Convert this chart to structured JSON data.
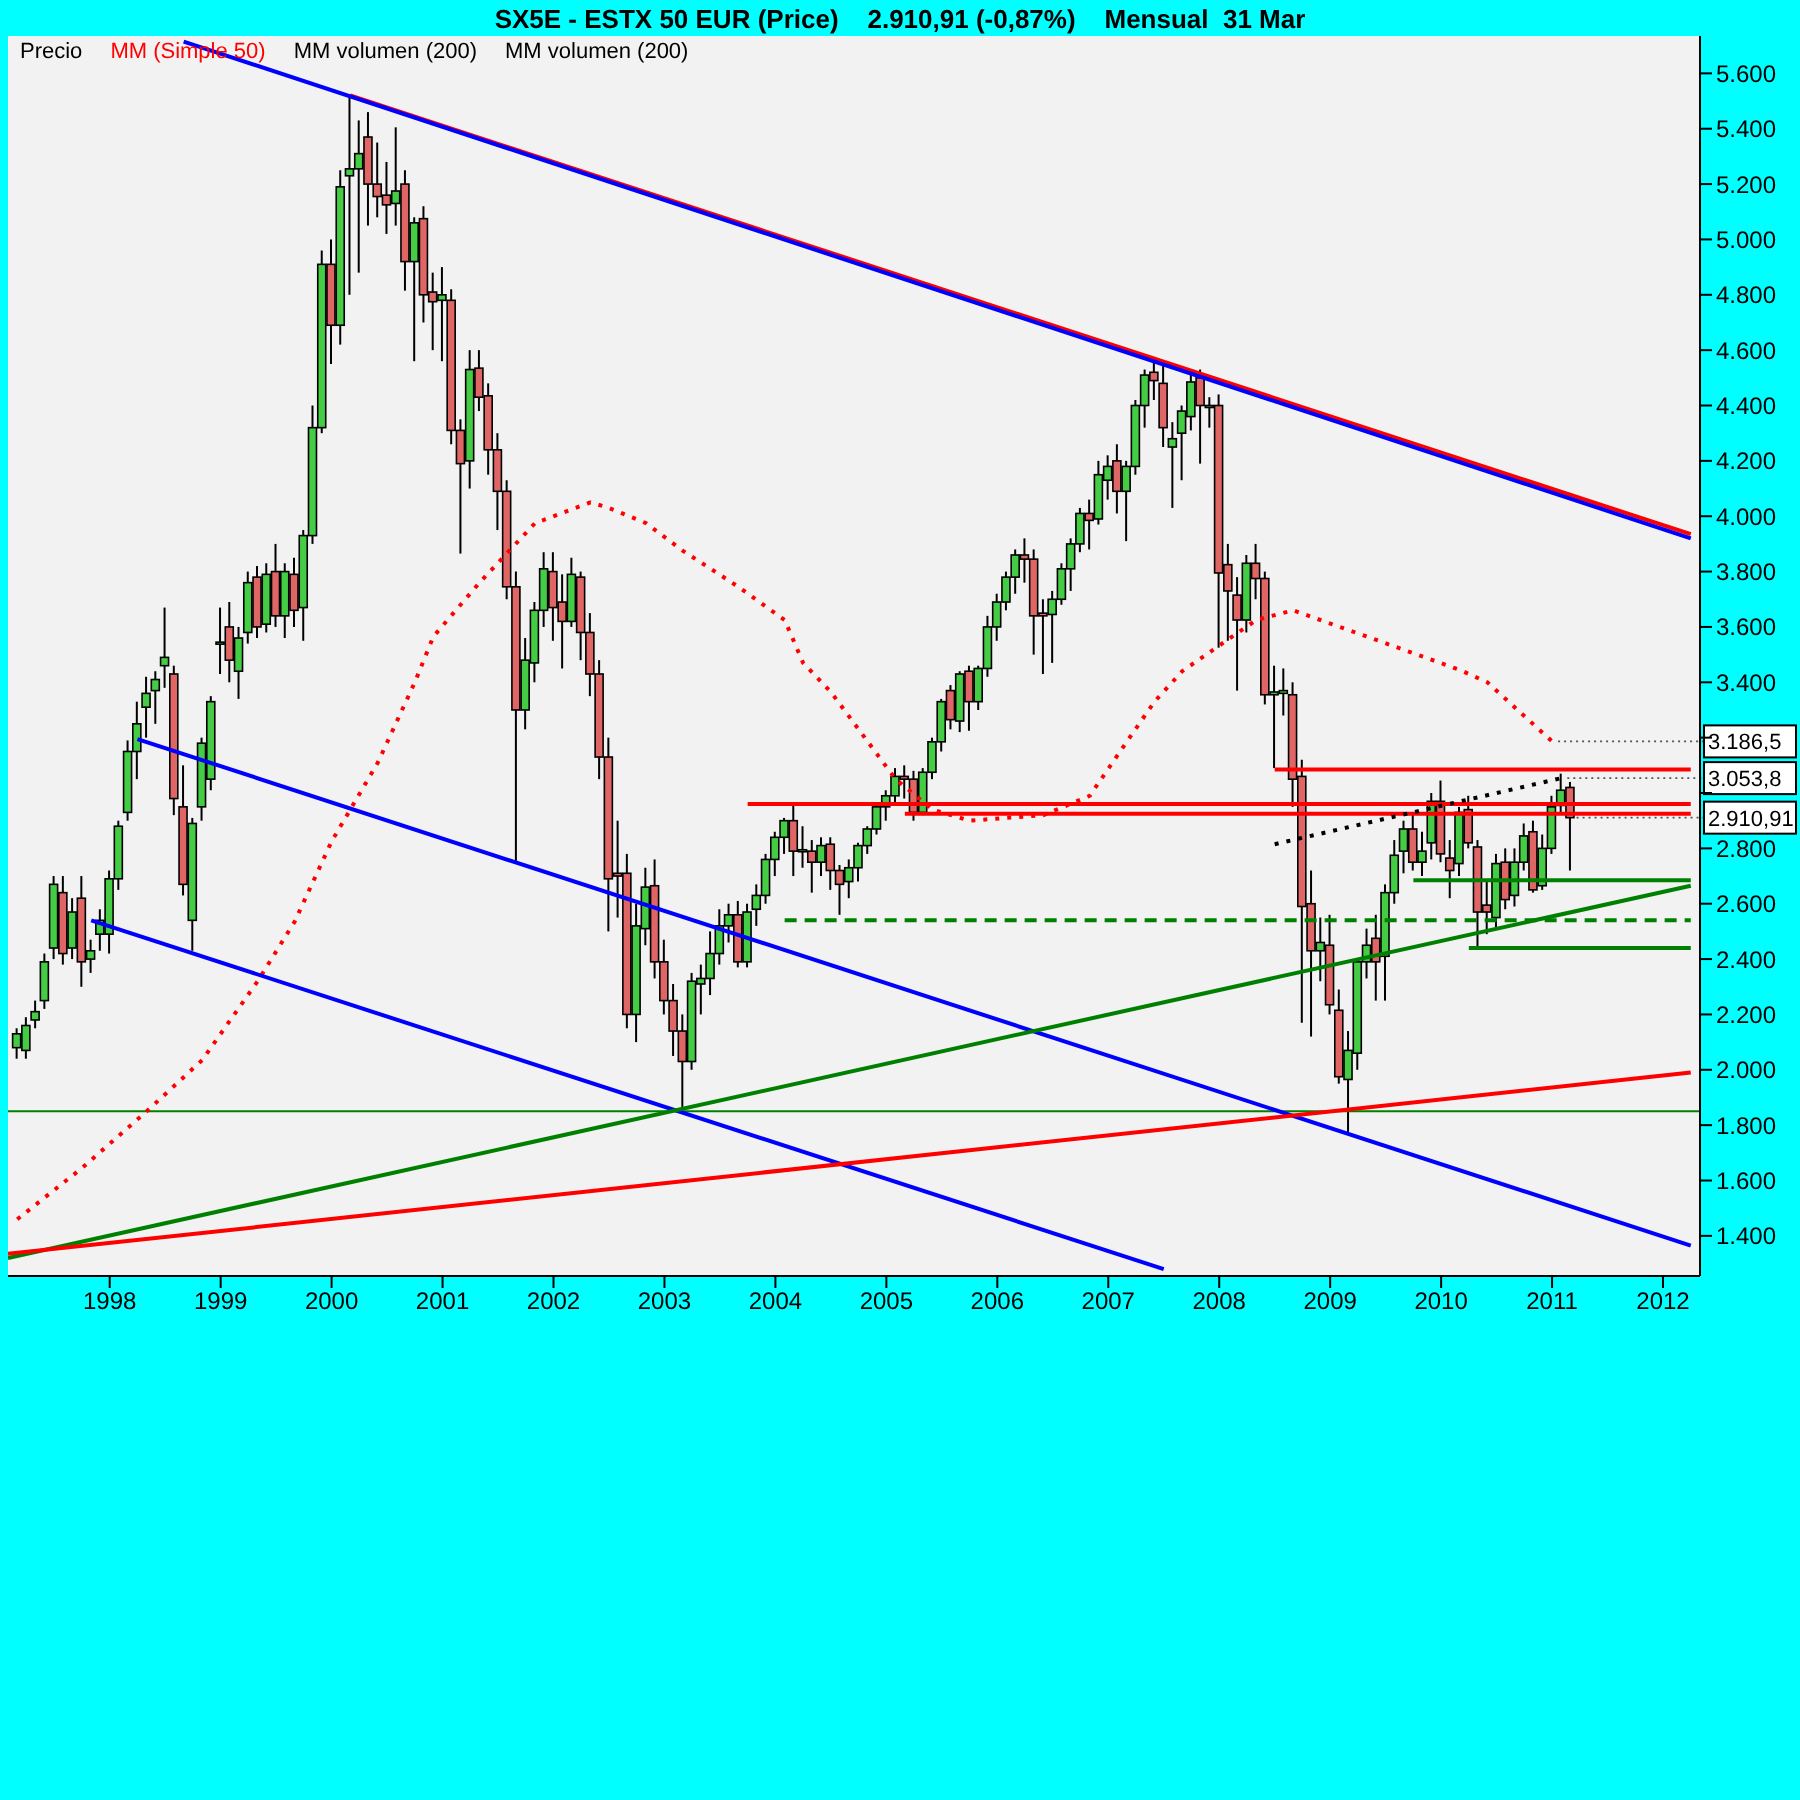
{
  "chart_data": {
    "type": "candlestick",
    "title": "SX5E - ESTX 50 EUR (Price)    2.910,91 (-0,87%)    Mensual  31 Mar",
    "legend": "top left",
    "grid": false,
    "xlim": [
      "1997-02",
      "2012-05"
    ],
    "xticks": [
      {
        "value": "1998-01",
        "label": "1998"
      },
      {
        "value": "1999-01",
        "label": "1999"
      },
      {
        "value": "2000-01",
        "label": "2000"
      },
      {
        "value": "2001-01",
        "label": "2001"
      },
      {
        "value": "2002-01",
        "label": "2002"
      },
      {
        "value": "2003-01",
        "label": "2003"
      },
      {
        "value": "2004-01",
        "label": "2004"
      },
      {
        "value": "2005-01",
        "label": "2005"
      },
      {
        "value": "2006-01",
        "label": "2006"
      },
      {
        "value": "2007-01",
        "label": "2007"
      },
      {
        "value": "2008-01",
        "label": "2008"
      },
      {
        "value": "2009-01",
        "label": "2009"
      },
      {
        "value": "2010-01",
        "label": "2010"
      },
      {
        "value": "2011-01",
        "label": "2011"
      },
      {
        "value": "2012-01",
        "label": "2012"
      }
    ],
    "ylim": [
      1255,
      5735
    ],
    "yticks": [
      {
        "value": 1400,
        "label": "1.400"
      },
      {
        "value": 1600,
        "label": "1.600"
      },
      {
        "value": 1800,
        "label": "1.800"
      },
      {
        "value": 2000,
        "label": "2.000"
      },
      {
        "value": 2200,
        "label": "2.200"
      },
      {
        "value": 2400,
        "label": "2.400"
      },
      {
        "value": 2600,
        "label": "2.600"
      },
      {
        "value": 2800,
        "label": "2.800"
      },
      {
        "value": 3000,
        "label": null
      },
      {
        "value": 3200,
        "label": null
      },
      {
        "value": 3400,
        "label": "3.400"
      },
      {
        "value": 3600,
        "label": "3.600"
      },
      {
        "value": 3800,
        "label": "3.800"
      },
      {
        "value": 4000,
        "label": "4.000"
      },
      {
        "value": 4200,
        "label": "4.200"
      },
      {
        "value": 4400,
        "label": "4.400"
      },
      {
        "value": 4600,
        "label": "4.600"
      },
      {
        "value": 4800,
        "label": "4.800"
      },
      {
        "value": 5000,
        "label": "5.000"
      },
      {
        "value": 5200,
        "label": "5.200"
      },
      {
        "value": 5400,
        "label": "5.400"
      },
      {
        "value": 5600,
        "label": "5.600"
      }
    ],
    "ref_lines": [
      {
        "axis": "y",
        "value": 1850,
        "color": "#008000"
      }
    ],
    "annotations": [
      "MM volumen (200)",
      "MM volumen (200)",
      {
        "text": "3.186,5",
        "x": "2011-01",
        "y": 3186.5
      },
      {
        "text": "3.053,8",
        "x": "2011-02",
        "y": 3053.8
      },
      {
        "text": "2.910,91",
        "x": "2011-03",
        "y": 2910.91
      }
    ],
    "series": [
      {
        "type": "line",
        "name": "MM (Simple 50)",
        "color": "#ff0000",
        "line_style": "dotted",
        "x": [
          "1997-03",
          "1997-10",
          "1998-05",
          "1998-11",
          "1999-05",
          "1999-09",
          "2000-01",
          "2000-06",
          "2000-10",
          "2000-12",
          "2001-05",
          "2001-11",
          "2002-05",
          "2002-07",
          "2002-11",
          "2003-03",
          "2003-09",
          "2004-02",
          "2004-04",
          "2004-07",
          "2004-11",
          "2005-02",
          "2005-06",
          "2005-10",
          "2006-06",
          "2006-11",
          "2007-03",
          "2007-06",
          "2007-09",
          "2008-05",
          "2008-09",
          "2009-05",
          "2010-03",
          "2010-06",
          "2011-01"
        ],
        "values": [
          1460,
          1645,
          1850,
          2035,
          2320,
          2535,
          2825,
          3110,
          3400,
          3565,
          3760,
          3975,
          4050,
          4030,
          3975,
          3875,
          3745,
          3625,
          3470,
          3365,
          3185,
          3050,
          2940,
          2900,
          2920,
          2990,
          3185,
          3330,
          3440,
          3625,
          3660,
          3565,
          3445,
          3400,
          3186.5
        ]
      },
      {
        "type": "line",
        "color": "#ff0000",
        "x": [
          "2000-03",
          "2012-04"
        ],
        "values": [
          5520,
          3935
        ]
      },
      {
        "type": "line",
        "color": "#0000ff",
        "x": [
          "1998-09",
          "2012-04"
        ],
        "values": [
          5715,
          3920
        ]
      },
      {
        "type": "line",
        "color": "#0000ff",
        "x": [
          "1998-04",
          "2012-04"
        ],
        "values": [
          3195,
          1365
        ]
      },
      {
        "type": "line",
        "color": "#0000ff",
        "x": [
          "1997-11",
          "2007-07"
        ],
        "values": [
          2540,
          1280
        ]
      },
      {
        "type": "line",
        "color": "#008000",
        "x": [
          "1997-02",
          "2012-04"
        ],
        "values": [
          1320,
          2665
        ]
      },
      {
        "type": "line",
        "color": "#ff0000",
        "x": [
          "1997-02",
          "2012-04"
        ],
        "values": [
          1335,
          1990
        ]
      },
      {
        "type": "line",
        "color": "#ff0000",
        "x": [
          "2003-10",
          "2012-04"
        ],
        "values": [
          2960,
          2960
        ]
      },
      {
        "type": "line",
        "color": "#ff0000",
        "x": [
          "2005-03",
          "2012-04"
        ],
        "values": [
          2925,
          2925
        ]
      },
      {
        "type": "line",
        "color": "#ff0000",
        "x": [
          "2008-07",
          "2012-04"
        ],
        "values": [
          3085,
          3085
        ]
      },
      {
        "type": "line",
        "color": "#008000",
        "line_style": "dashed",
        "x": [
          "2004-02",
          "2012-04"
        ],
        "values": [
          2540,
          2540
        ]
      },
      {
        "type": "line",
        "color": "#008000",
        "x": [
          "2009-10",
          "2012-04"
        ],
        "values": [
          2685,
          2685
        ]
      },
      {
        "type": "line",
        "color": "#008000",
        "x": [
          "2010-04",
          "2012-04"
        ],
        "values": [
          2440,
          2440
        ]
      },
      {
        "type": "line",
        "color": "#000000",
        "line_style": "dotted",
        "x": [
          "2008-07",
          "2011-02"
        ],
        "values": [
          2815,
          3053.8
        ]
      },
      {
        "type": "candlestick",
        "name": "Precio",
        "x": [
          "1997-03",
          "1997-04",
          "1997-05",
          "1997-06",
          "1997-07",
          "1997-08",
          "1997-09",
          "1997-10",
          "1997-11",
          "1997-12",
          "1998-01",
          "1998-02",
          "1998-03",
          "1998-04",
          "1998-05",
          "1998-06",
          "1998-07",
          "1998-08",
          "1998-09",
          "1998-10",
          "1998-11",
          "1998-12",
          "1999-01",
          "1999-02",
          "1999-03",
          "1999-04",
          "1999-05",
          "1999-06",
          "1999-07",
          "1999-08",
          "1999-09",
          "1999-10",
          "1999-11",
          "1999-12",
          "2000-01",
          "2000-02",
          "2000-03",
          "2000-04",
          "2000-05",
          "2000-06",
          "2000-07",
          "2000-08",
          "2000-09",
          "2000-10",
          "2000-11",
          "2000-12",
          "2001-01",
          "2001-02",
          "2001-03",
          "2001-04",
          "2001-05",
          "2001-06",
          "2001-07",
          "2001-08",
          "2001-09",
          "2001-10",
          "2001-11",
          "2001-12",
          "2002-01",
          "2002-02",
          "2002-03",
          "2002-04",
          "2002-05",
          "2002-06",
          "2002-07",
          "2002-08",
          "2002-09",
          "2002-10",
          "2002-11",
          "2002-12",
          "2003-01",
          "2003-02",
          "2003-03",
          "2003-04",
          "2003-05",
          "2003-06",
          "2003-07",
          "2003-08",
          "2003-09",
          "2003-10",
          "2003-11",
          "2003-12",
          "2004-01",
          "2004-02",
          "2004-03",
          "2004-04",
          "2004-05",
          "2004-06",
          "2004-07",
          "2004-08",
          "2004-09",
          "2004-10",
          "2004-11",
          "2004-12",
          "2005-01",
          "2005-02",
          "2005-03",
          "2005-04",
          "2005-05",
          "2005-06",
          "2005-07",
          "2005-08",
          "2005-09",
          "2005-10",
          "2005-11",
          "2005-12",
          "2006-01",
          "2006-02",
          "2006-03",
          "2006-04",
          "2006-05",
          "2006-06",
          "2006-07",
          "2006-08",
          "2006-09",
          "2006-10",
          "2006-11",
          "2006-12",
          "2007-01",
          "2007-02",
          "2007-03",
          "2007-04",
          "2007-05",
          "2007-06",
          "2007-07",
          "2007-08",
          "2007-09",
          "2007-10",
          "2007-11",
          "2007-12",
          "2008-01",
          "2008-02",
          "2008-03",
          "2008-04",
          "2008-05",
          "2008-06",
          "2008-07",
          "2008-08",
          "2008-09",
          "2008-10",
          "2008-11",
          "2008-12",
          "2009-01",
          "2009-02",
          "2009-03",
          "2009-04",
          "2009-05",
          "2009-06",
          "2009-07",
          "2009-08",
          "2009-09",
          "2009-10",
          "2009-11",
          "2009-12",
          "2010-01",
          "2010-02",
          "2010-03",
          "2010-04",
          "2010-05",
          "2010-06",
          "2010-07",
          "2010-08",
          "2010-09",
          "2010-10",
          "2010-11",
          "2010-12",
          "2011-01",
          "2011-02",
          "2011-03"
        ],
        "ohlc": [
          [
            2080,
            2150,
            2040,
            2130
          ],
          [
            2070,
            2190,
            2040,
            2160
          ],
          [
            2180,
            2250,
            2150,
            2210
          ],
          [
            2250,
            2420,
            2220,
            2390
          ],
          [
            2440,
            2700,
            2400,
            2670
          ],
          [
            2640,
            2700,
            2380,
            2420
          ],
          [
            2440,
            2620,
            2400,
            2570
          ],
          [
            2620,
            2700,
            2300,
            2390
          ],
          [
            2400,
            2470,
            2350,
            2430
          ],
          [
            2490,
            2580,
            2430,
            2540
          ],
          [
            2490,
            2720,
            2420,
            2690
          ],
          [
            2690,
            2900,
            2650,
            2880
          ],
          [
            2930,
            3190,
            2900,
            3150
          ],
          [
            3150,
            3330,
            3050,
            3250
          ],
          [
            3310,
            3420,
            3200,
            3360
          ],
          [
            3370,
            3440,
            3250,
            3410
          ],
          [
            3460,
            3670,
            3380,
            3490
          ],
          [
            3430,
            3460,
            2920,
            2980
          ],
          [
            2950,
            3100,
            2630,
            2670
          ],
          [
            2540,
            2910,
            2430,
            2890
          ],
          [
            2950,
            3200,
            2900,
            3180
          ],
          [
            3050,
            3350,
            3010,
            3330
          ],
          [
            3540,
            3670,
            3430,
            3545
          ],
          [
            3600,
            3690,
            3400,
            3480
          ],
          [
            3440,
            3600,
            3340,
            3560
          ],
          [
            3580,
            3800,
            3540,
            3760
          ],
          [
            3780,
            3820,
            3560,
            3600
          ],
          [
            3610,
            3830,
            3580,
            3790
          ],
          [
            3800,
            3900,
            3600,
            3640
          ],
          [
            3640,
            3830,
            3560,
            3800
          ],
          [
            3790,
            3850,
            3600,
            3660
          ],
          [
            3670,
            3950,
            3550,
            3930
          ],
          [
            3930,
            4400,
            3900,
            4320
          ],
          [
            4320,
            4960,
            4300,
            4910
          ],
          [
            4910,
            5000,
            4550,
            4690
          ],
          [
            4690,
            5250,
            4620,
            5190
          ],
          [
            5230,
            5520,
            4800,
            5255
          ],
          [
            5255,
            5430,
            4880,
            5310
          ],
          [
            5370,
            5460,
            5050,
            5200
          ],
          [
            5200,
            5350,
            5080,
            5155
          ],
          [
            5160,
            5280,
            5020,
            5125
          ],
          [
            5130,
            5405,
            5050,
            5175
          ],
          [
            5200,
            5250,
            4815,
            4920
          ],
          [
            4920,
            5080,
            4560,
            5060
          ],
          [
            5075,
            5120,
            4700,
            4800
          ],
          [
            4810,
            4880,
            4600,
            4775
          ],
          [
            4780,
            4900,
            4560,
            4800
          ],
          [
            4780,
            4820,
            4260,
            4310
          ],
          [
            4310,
            4350,
            3865,
            4190
          ],
          [
            4200,
            4600,
            4100,
            4530
          ],
          [
            4535,
            4600,
            4380,
            4430
          ],
          [
            4435,
            4480,
            4150,
            4240
          ],
          [
            4240,
            4300,
            3950,
            4090
          ],
          [
            4090,
            4130,
            3700,
            3745
          ],
          [
            3745,
            3800,
            2750,
            3300
          ],
          [
            3300,
            3560,
            3230,
            3480
          ],
          [
            3470,
            3690,
            3400,
            3660
          ],
          [
            3660,
            3870,
            3600,
            3810
          ],
          [
            3800,
            3870,
            3550,
            3670
          ],
          [
            3690,
            3790,
            3450,
            3620
          ],
          [
            3620,
            3850,
            3600,
            3790
          ],
          [
            3780,
            3800,
            3480,
            3580
          ],
          [
            3580,
            3650,
            3350,
            3430
          ],
          [
            3430,
            3480,
            3050,
            3130
          ],
          [
            3130,
            3200,
            2500,
            2690
          ],
          [
            2710,
            2900,
            2550,
            2700
          ],
          [
            2710,
            2780,
            2150,
            2200
          ],
          [
            2200,
            2600,
            2100,
            2520
          ],
          [
            2510,
            2730,
            2450,
            2660
          ],
          [
            2665,
            2760,
            2330,
            2390
          ],
          [
            2390,
            2470,
            2200,
            2250
          ],
          [
            2250,
            2310,
            2050,
            2140
          ],
          [
            2140,
            2200,
            1850,
            2030
          ],
          [
            2030,
            2350,
            2000,
            2320
          ],
          [
            2310,
            2380,
            2200,
            2330
          ],
          [
            2330,
            2500,
            2270,
            2420
          ],
          [
            2420,
            2580,
            2380,
            2520
          ],
          [
            2520,
            2600,
            2460,
            2560
          ],
          [
            2560,
            2610,
            2370,
            2390
          ],
          [
            2390,
            2600,
            2370,
            2570
          ],
          [
            2580,
            2670,
            2520,
            2630
          ],
          [
            2630,
            2780,
            2600,
            2760
          ],
          [
            2760,
            2860,
            2700,
            2840
          ],
          [
            2840,
            2910,
            2780,
            2900
          ],
          [
            2900,
            2965,
            2700,
            2790
          ],
          [
            2790,
            2880,
            2730,
            2795
          ],
          [
            2790,
            2830,
            2640,
            2750
          ],
          [
            2750,
            2840,
            2700,
            2810
          ],
          [
            2815,
            2840,
            2650,
            2720
          ],
          [
            2720,
            2740,
            2560,
            2670
          ],
          [
            2680,
            2760,
            2620,
            2730
          ],
          [
            2730,
            2820,
            2680,
            2810
          ],
          [
            2810,
            2880,
            2780,
            2870
          ],
          [
            2870,
            2960,
            2850,
            2950
          ],
          [
            2950,
            3010,
            2900,
            2990
          ],
          [
            2990,
            3090,
            2960,
            3060
          ],
          [
            3060,
            3100,
            2980,
            3050
          ],
          [
            3050,
            3080,
            2900,
            2930
          ],
          [
            2930,
            3090,
            2920,
            3075
          ],
          [
            3075,
            3200,
            3050,
            3185
          ],
          [
            3185,
            3340,
            3150,
            3330
          ],
          [
            3370,
            3390,
            3230,
            3265
          ],
          [
            3260,
            3440,
            3220,
            3430
          ],
          [
            3440,
            3460,
            3225,
            3330
          ],
          [
            3330,
            3460,
            3300,
            3450
          ],
          [
            3450,
            3640,
            3420,
            3600
          ],
          [
            3600,
            3720,
            3550,
            3690
          ],
          [
            3690,
            3800,
            3660,
            3780
          ],
          [
            3780,
            3880,
            3720,
            3860
          ],
          [
            3860,
            3920,
            3760,
            3845
          ],
          [
            3845,
            3880,
            3500,
            3640
          ],
          [
            3650,
            3700,
            3430,
            3640
          ],
          [
            3645,
            3730,
            3470,
            3700
          ],
          [
            3700,
            3830,
            3680,
            3810
          ],
          [
            3810,
            3920,
            3730,
            3900
          ],
          [
            3900,
            4030,
            3870,
            4010
          ],
          [
            4010,
            4060,
            3880,
            3985
          ],
          [
            3990,
            4200,
            3970,
            4150
          ],
          [
            4130,
            4220,
            4060,
            4180
          ],
          [
            4200,
            4260,
            4010,
            4090
          ],
          [
            4090,
            4200,
            3910,
            4180
          ],
          [
            4180,
            4420,
            4150,
            4400
          ],
          [
            4400,
            4530,
            4320,
            4510
          ],
          [
            4520,
            4570,
            4420,
            4490
          ],
          [
            4480,
            4560,
            4250,
            4320
          ],
          [
            4250,
            4340,
            4030,
            4280
          ],
          [
            4300,
            4400,
            4130,
            4380
          ],
          [
            4360,
            4530,
            4310,
            4485
          ],
          [
            4500,
            4530,
            4190,
            4400
          ],
          [
            4395,
            4430,
            4320,
            4400
          ],
          [
            4400,
            4440,
            3525,
            3795
          ],
          [
            3825,
            3900,
            3550,
            3730
          ],
          [
            3715,
            3780,
            3370,
            3625
          ],
          [
            3625,
            3860,
            3580,
            3830
          ],
          [
            3830,
            3900,
            3700,
            3775
          ],
          [
            3775,
            3800,
            3320,
            3355
          ],
          [
            3355,
            3460,
            3090,
            3365
          ],
          [
            3360,
            3450,
            3280,
            3370
          ],
          [
            3355,
            3400,
            2950,
            3050
          ],
          [
            3060,
            3120,
            2170,
            2590
          ],
          [
            2600,
            2720,
            2120,
            2430
          ],
          [
            2430,
            2550,
            2320,
            2460
          ],
          [
            2450,
            2560,
            2200,
            2235
          ],
          [
            2215,
            2290,
            1950,
            1975
          ],
          [
            1965,
            2140,
            1775,
            2070
          ],
          [
            2060,
            2400,
            2000,
            2390
          ],
          [
            2390,
            2510,
            2330,
            2450
          ],
          [
            2475,
            2560,
            2250,
            2390
          ],
          [
            2410,
            2670,
            2250,
            2640
          ],
          [
            2640,
            2830,
            2600,
            2775
          ],
          [
            2790,
            2900,
            2710,
            2870
          ],
          [
            2870,
            2930,
            2720,
            2750
          ],
          [
            2750,
            2860,
            2700,
            2790
          ],
          [
            2820,
            3000,
            2760,
            2970
          ],
          [
            2970,
            3045,
            2750,
            2780
          ],
          [
            2765,
            2830,
            2620,
            2720
          ],
          [
            2745,
            2950,
            2700,
            2930
          ],
          [
            2940,
            2990,
            2800,
            2820
          ],
          [
            2805,
            2830,
            2445,
            2570
          ],
          [
            2595,
            2680,
            2490,
            2570
          ],
          [
            2550,
            2780,
            2510,
            2745
          ],
          [
            2750,
            2800,
            2580,
            2615
          ],
          [
            2630,
            2800,
            2590,
            2750
          ],
          [
            2750,
            2890,
            2720,
            2845
          ],
          [
            2860,
            2900,
            2640,
            2650
          ],
          [
            2665,
            2850,
            2650,
            2800
          ],
          [
            2800,
            2990,
            2780,
            2950
          ],
          [
            2955,
            3070,
            2930,
            3010
          ],
          [
            3020,
            3040,
            2720,
            2910.91
          ]
        ],
        "colors": [
          "#44cc44",
          "#44cc44",
          "#44cc44",
          "#44cc44",
          "#44cc44",
          "#e06666",
          "#44cc44",
          "#e06666",
          "#44cc44",
          "#44cc44",
          "#44cc44",
          "#44cc44",
          "#44cc44",
          "#44cc44",
          "#44cc44",
          "#44cc44",
          "#44cc44",
          "#e06666",
          "#e06666",
          "#44cc44",
          "#44cc44",
          "#44cc44",
          "#44cc44",
          "#e06666",
          "#44cc44",
          "#44cc44",
          "#e06666",
          "#44cc44",
          "#e06666",
          "#44cc44",
          "#e06666",
          "#44cc44",
          "#44cc44",
          "#44cc44",
          "#e06666",
          "#44cc44",
          "#44cc44",
          "#44cc44",
          "#e06666",
          "#e06666",
          "#e06666",
          "#44cc44",
          "#e06666",
          "#44cc44",
          "#e06666",
          "#e06666",
          "#44cc44",
          "#e06666",
          "#e06666",
          "#44cc44",
          "#e06666",
          "#e06666",
          "#e06666",
          "#e06666",
          "#e06666",
          "#44cc44",
          "#44cc44",
          "#44cc44",
          "#e06666",
          "#e06666",
          "#44cc44",
          "#e06666",
          "#e06666",
          "#e06666",
          "#e06666",
          "#e06666",
          "#e06666",
          "#44cc44",
          "#44cc44",
          "#e06666",
          "#e06666",
          "#e06666",
          "#e06666",
          "#44cc44",
          "#44cc44",
          "#44cc44",
          "#44cc44",
          "#44cc44",
          "#e06666",
          "#44cc44",
          "#44cc44",
          "#44cc44",
          "#44cc44",
          "#44cc44",
          "#e06666",
          "#44cc44",
          "#e06666",
          "#44cc44",
          "#e06666",
          "#e06666",
          "#44cc44",
          "#44cc44",
          "#44cc44",
          "#44cc44",
          "#44cc44",
          "#44cc44",
          "#e06666",
          "#e06666",
          "#44cc44",
          "#44cc44",
          "#44cc44",
          "#e06666",
          "#44cc44",
          "#e06666",
          "#44cc44",
          "#44cc44",
          "#44cc44",
          "#44cc44",
          "#44cc44",
          "#e06666",
          "#e06666",
          "#e06666",
          "#44cc44",
          "#44cc44",
          "#44cc44",
          "#44cc44",
          "#e06666",
          "#44cc44",
          "#44cc44",
          "#e06666",
          "#44cc44",
          "#44cc44",
          "#44cc44",
          "#e06666",
          "#e06666",
          "#44cc44",
          "#44cc44",
          "#44cc44",
          "#e06666",
          "#44cc44",
          "#e06666",
          "#e06666",
          "#e06666",
          "#44cc44",
          "#e06666",
          "#e06666",
          "#44cc44",
          "#44cc44",
          "#e06666",
          "#e06666",
          "#e06666",
          "#44cc44",
          "#e06666",
          "#e06666",
          "#44cc44",
          "#44cc44",
          "#44cc44",
          "#e06666",
          "#44cc44",
          "#44cc44",
          "#44cc44",
          "#e06666",
          "#44cc44",
          "#44cc44",
          "#e06666",
          "#e06666",
          "#44cc44",
          "#e06666",
          "#e06666",
          "#e06666",
          "#44cc44",
          "#e06666",
          "#44cc44",
          "#44cc44",
          "#e06666",
          "#44cc44",
          "#44cc44",
          "#44cc44",
          "#e06666"
        ]
      }
    ]
  }
}
